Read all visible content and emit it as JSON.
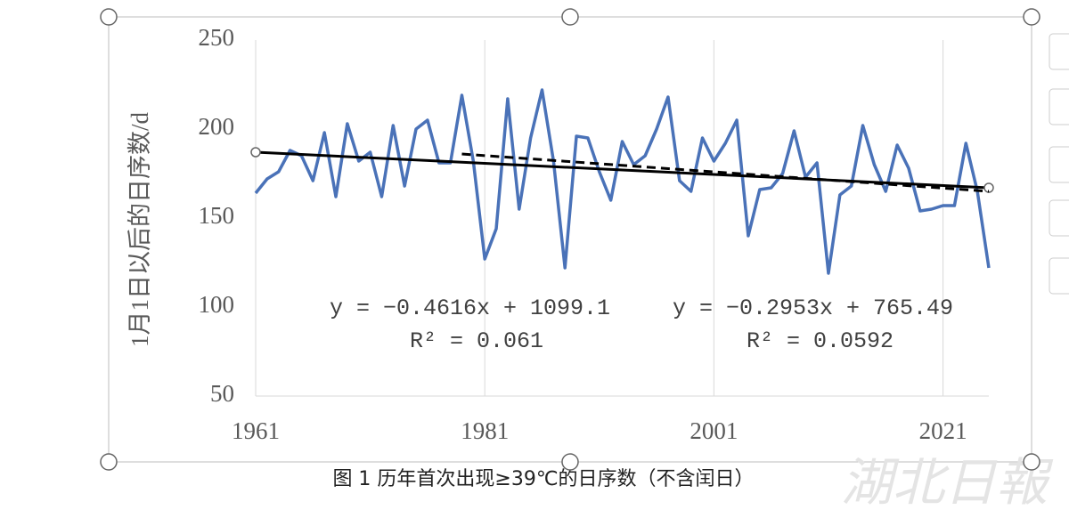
{
  "chart_data": {
    "type": "line",
    "y_axis_label": "1月1日以后的日序数/d",
    "caption": "图 1  历年首次出现≥39℃的日序数（不含闰日）",
    "x": [
      1961,
      1962,
      1963,
      1964,
      1965,
      1966,
      1967,
      1968,
      1969,
      1970,
      1971,
      1972,
      1973,
      1974,
      1975,
      1976,
      1977,
      1978,
      1979,
      1980,
      1981,
      1982,
      1983,
      1984,
      1985,
      1986,
      1987,
      1988,
      1989,
      1990,
      1991,
      1992,
      1993,
      1994,
      1995,
      1996,
      1997,
      1998,
      1999,
      2000,
      2001,
      2002,
      2003,
      2004,
      2005,
      2006,
      2007,
      2008,
      2009,
      2010,
      2011,
      2012,
      2013,
      2014,
      2015,
      2016,
      2017,
      2018,
      2019,
      2020,
      2021,
      2022,
      2023,
      2024,
      2025
    ],
    "series": [
      {
        "color": "#4a72b8",
        "values": [
          164,
          172,
          176,
          188,
          185,
          171,
          198,
          162,
          203,
          182,
          187,
          162,
          202,
          168,
          200,
          205,
          181,
          181,
          219,
          182,
          127,
          144,
          217,
          155,
          195,
          222,
          182,
          122,
          196,
          195,
          176,
          160,
          193,
          180,
          185,
          200,
          218,
          171,
          165,
          195,
          182,
          192,
          205,
          140,
          166,
          167,
          175,
          199,
          173,
          181,
          119,
          163,
          168,
          202,
          180,
          165,
          191,
          178,
          154,
          155,
          157,
          157,
          192,
          165,
          122
        ]
      }
    ],
    "trendlines": [
      {
        "x": [
          1961,
          2025
        ],
        "values": [
          187,
          167
        ],
        "color": "#000000",
        "dash": false
      },
      {
        "x": [
          1979,
          2025
        ],
        "values": [
          186,
          165
        ],
        "color": "#000000",
        "dash": true
      }
    ],
    "annotations": [
      "y = −0.4616x + 1099.1",
      "R² = 0.061",
      "y = −0.2953x + 765.49",
      "R² = 0.0592"
    ],
    "xlim": [
      1961,
      2025
    ],
    "ylim": [
      50,
      250
    ],
    "xticks": [
      1961,
      1981,
      2001,
      2021
    ],
    "yticks": [
      50,
      100,
      150,
      200,
      250
    ],
    "grid": "x"
  }
}
